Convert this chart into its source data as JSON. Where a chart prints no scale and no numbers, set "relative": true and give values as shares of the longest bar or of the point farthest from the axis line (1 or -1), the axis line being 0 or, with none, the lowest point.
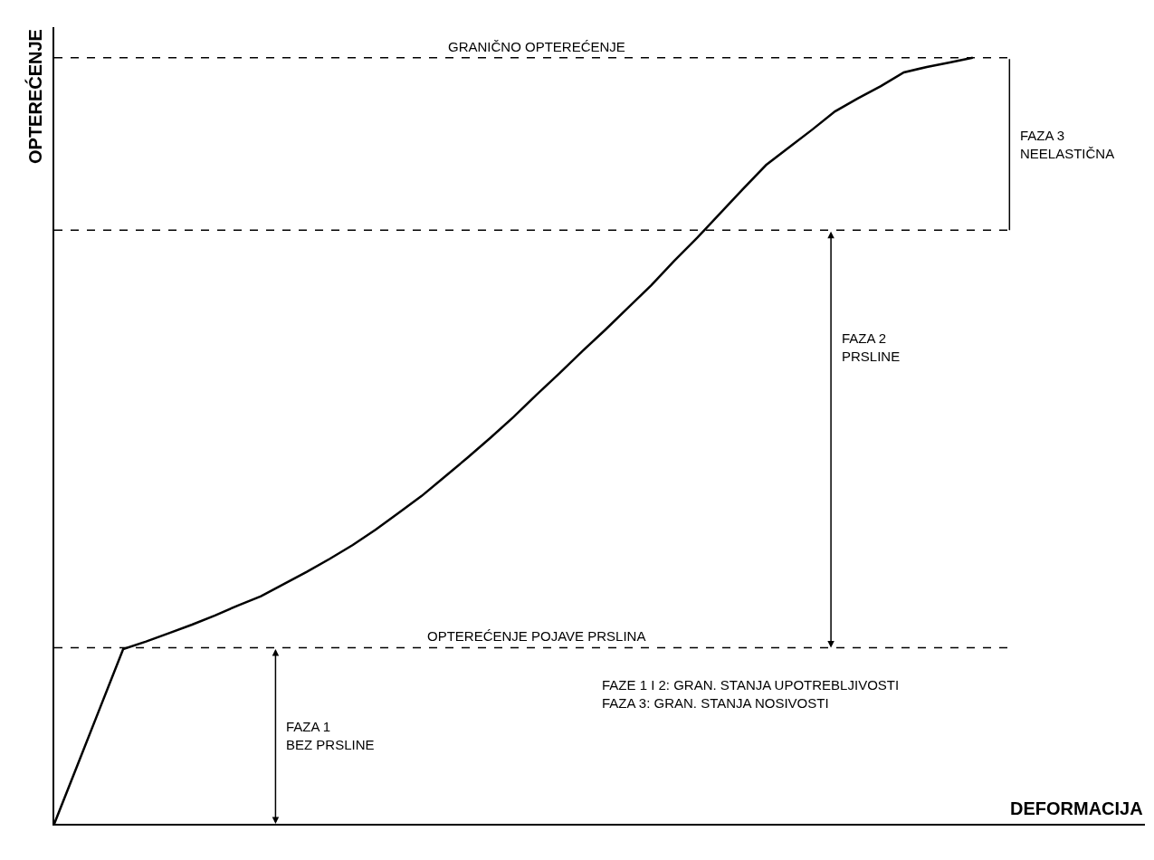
{
  "chart_data": {
    "type": "line",
    "relative": true,
    "xlabel": "DEFORMACIJA",
    "ylabel": "OPTEREĆENJE",
    "color": "#000000",
    "categories": [
      null,
      null,
      null,
      null,
      null,
      null,
      null,
      null,
      null,
      null,
      null,
      null,
      null,
      null,
      null,
      null,
      null,
      null,
      null,
      null,
      null,
      null,
      null,
      null,
      null,
      null,
      null,
      null,
      null,
      null,
      null,
      null,
      null,
      null,
      null,
      null,
      null,
      null,
      null,
      null,
      null
    ],
    "values": [
      0,
      0.076,
      0.152,
      0.228,
      0.238,
      0.249,
      0.26,
      0.272,
      0.285,
      0.297,
      0.313,
      0.329,
      0.346,
      0.364,
      0.384,
      0.406,
      0.428,
      0.453,
      0.478,
      0.504,
      0.531,
      0.56,
      0.588,
      0.617,
      0.645,
      0.674,
      0.703,
      0.735,
      0.765,
      0.797,
      0.829,
      0.86,
      0.883,
      0.906,
      0.93,
      0.947,
      0.963,
      0.981,
      0.988,
      0.994,
      1.0
    ],
    "ref_lines": [
      {
        "axis": "y",
        "value": 1.0,
        "label": "GRANIČNO OPTEREĆENJE",
        "line_style": "dashed",
        "color": "#000000"
      },
      {
        "axis": "y",
        "value": 0.775,
        "label": null,
        "line_style": "dashed",
        "color": "#000000"
      },
      {
        "axis": "y",
        "value": 0.23,
        "label": "OPTEREĆENJE POJAVE PRSLINA",
        "line_style": "dashed",
        "color": "#000000"
      }
    ],
    "annotations": [
      "FAZA 1\nBEZ PRSLINE",
      "FAZA 2\nPRSLINE",
      "FAZA 3\nNEELASTIČNA",
      "FAZE 1 I 2: GRAN. STANJA UPOTREBLJIVOSTI\nFAZA 3: GRAN. STANJA NOSIVOSTI"
    ]
  }
}
